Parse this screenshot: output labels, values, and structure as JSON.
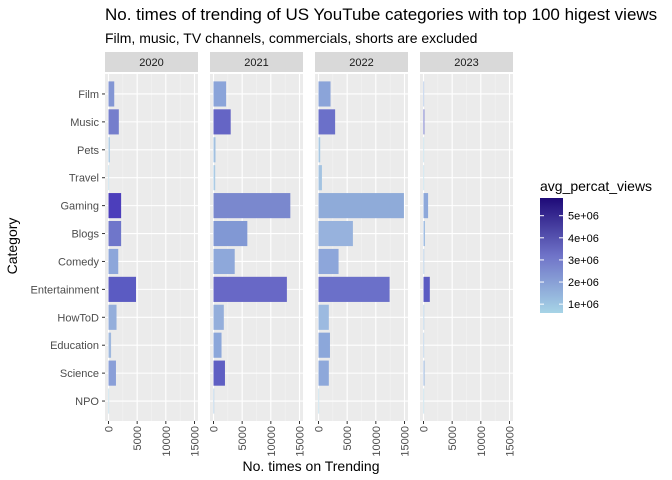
{
  "chart_data": {
    "type": "bar",
    "orientation": "horizontal",
    "title": "No. times of trending of US YouTube categories with top 100 higest views",
    "subtitle": "Film, music, TV channels, commercials, shorts are excluded",
    "xlabel": "No. times on Trending",
    "ylabel": "Category",
    "xlim": [
      0,
      15000
    ],
    "x_ticks": [
      0,
      5000,
      10000,
      15000
    ],
    "x_tick_labels": [
      "0",
      "5000",
      "10000",
      "15000"
    ],
    "categories": [
      "NPO",
      "Science",
      "Education",
      "HowToD",
      "Entertainment",
      "Comedy",
      "Blogs",
      "Gaming",
      "Travel",
      "Pets",
      "Music",
      "Film"
    ],
    "facets": [
      {
        "label": "2020",
        "values": [
          15,
          1300,
          450,
          1400,
          4800,
          1700,
          2200,
          2200,
          30,
          230,
          1800,
          1000
        ],
        "colors": [
          "#b0d4e6",
          "#8a9fd8",
          "#9fb8de",
          "#94aedb",
          "#5b5bc2",
          "#8da6da",
          "#6f76ca",
          "#4c3ebb",
          "#b0d4e6",
          "#a8c8e3",
          "#757ecc",
          "#8396d4"
        ]
      },
      {
        "label": "2021",
        "values": [
          120,
          2000,
          1400,
          1800,
          12800,
          3700,
          5900,
          13400,
          300,
          350,
          3000,
          2200
        ],
        "colors": [
          "#a8c8e3",
          "#5f5fc3",
          "#8ca7da",
          "#94aedb",
          "#6868c6",
          "#8ea8da",
          "#8198d4",
          "#7a88ce",
          "#abcbe4",
          "#a2c0e0",
          "#6565c5",
          "#8ba4d9"
        ]
      },
      {
        "label": "2022",
        "values": [
          40,
          1800,
          2000,
          1800,
          12400,
          3500,
          6000,
          14900,
          600,
          300,
          2900,
          2100
        ],
        "colors": [
          "#b0d4e6",
          "#8ea8da",
          "#8ca7da",
          "#9cbae0",
          "#6b70c9",
          "#8da6da",
          "#97b2dd",
          "#8fabd9",
          "#a4c3e1",
          "#a8c8e3",
          "#6b70c9",
          "#8ba4d9"
        ]
      },
      {
        "label": "2023",
        "values": [
          20,
          180,
          100,
          120,
          1100,
          120,
          250,
          800,
          15,
          10,
          150,
          80
        ],
        "colors": [
          "#b0d4e6",
          "#9cbae0",
          "#a4c3e1",
          "#a8c8e3",
          "#5b5bc2",
          "#a4c3e1",
          "#9cbae0",
          "#8ea8da",
          "#b0d4e6",
          "#b0d4e6",
          "#6b70c9",
          "#9cbae0"
        ]
      }
    ],
    "legend": {
      "title": "avg_percat_views",
      "placement": "right",
      "labels": [
        "5e+06",
        "4e+06",
        "3e+06",
        "2e+06",
        "1e+06"
      ],
      "label_values": [
        5000000,
        4000000,
        3000000,
        2000000,
        1000000
      ],
      "range": [
        600000,
        5800000
      ],
      "color_low": "#a6d4e6",
      "color_high": "#1e0a78"
    },
    "grid": true
  }
}
